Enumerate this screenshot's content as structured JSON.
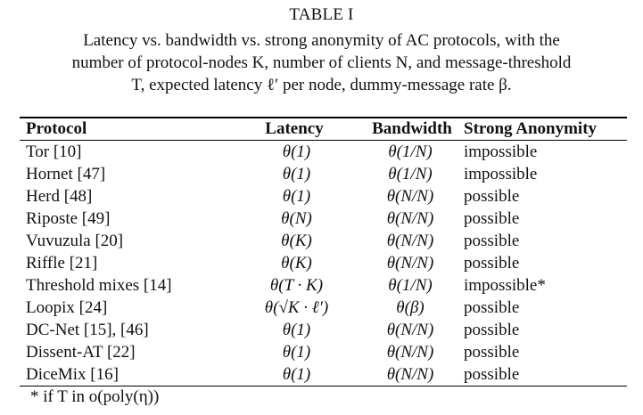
{
  "table_label": "TABLE I",
  "caption": {
    "line1": "Latency vs. bandwidth vs. strong anonymity of AC protocols, with the",
    "line2": "number of protocol-nodes K, number of clients N, and message-threshold",
    "line3": "T, expected latency ℓ′ per node, dummy-message rate β."
  },
  "headers": {
    "protocol": "Protocol",
    "latency": "Latency",
    "bandwidth": "Bandwidth",
    "anonymity": "Strong Anonymity"
  },
  "rows": [
    {
      "protocol": "Tor [10]",
      "latency": "θ(1)",
      "bandwidth": "θ(1/N)",
      "anonymity": "impossible"
    },
    {
      "protocol": "Hornet [47]",
      "latency": "θ(1)",
      "bandwidth": "θ(1/N)",
      "anonymity": "impossible"
    },
    {
      "protocol": "Herd [48]",
      "latency": "θ(1)",
      "bandwidth": "θ(N/N)",
      "anonymity": "possible"
    },
    {
      "protocol": "Riposte [49]",
      "latency": "θ(N)",
      "bandwidth": "θ(N/N)",
      "anonymity": "possible"
    },
    {
      "protocol": "Vuvuzula [20]",
      "latency": "θ(K)",
      "bandwidth": "θ(N/N)",
      "anonymity": "possible"
    },
    {
      "protocol": "Riffle [21]",
      "latency": "θ(K)",
      "bandwidth": "θ(N/N)",
      "anonymity": "possible"
    },
    {
      "protocol": "Threshold mixes [14]",
      "latency": "θ(T · K)",
      "bandwidth": "θ(1/N)",
      "anonymity": "impossible*"
    },
    {
      "protocol": "Loopix [24]",
      "latency": "θ(√K · ℓ′)",
      "bandwidth": "θ(β)",
      "anonymity": "possible"
    },
    {
      "protocol": "DC-Net [15], [46]",
      "latency": "θ(1)",
      "bandwidth": "θ(N/N)",
      "anonymity": "possible"
    },
    {
      "protocol": "Dissent-AT [22]",
      "latency": "θ(1)",
      "bandwidth": "θ(N/N)",
      "anonymity": "possible"
    },
    {
      "protocol": "DiceMix [16]",
      "latency": "θ(1)",
      "bandwidth": "θ(N/N)",
      "anonymity": "possible"
    }
  ],
  "footnote": "* if T in o(poly(η))"
}
